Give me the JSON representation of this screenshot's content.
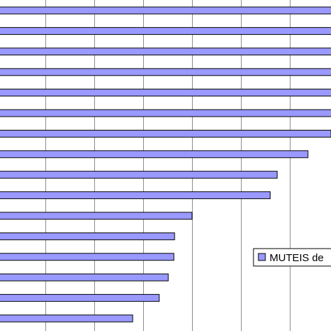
{
  "chart_data": {
    "type": "bar",
    "orientation": "horizontal",
    "values": [
      690,
      690,
      690,
      637,
      518,
      505,
      474,
      441,
      397,
      387,
      275,
      250,
      249,
      241,
      228,
      190
    ],
    "bar_color": "#9999ff",
    "bar_outline_color": "#000000",
    "grid": true,
    "legend": {
      "entries": [
        "MUTEIS de"
      ],
      "placement": "bottom-right"
    }
  }
}
